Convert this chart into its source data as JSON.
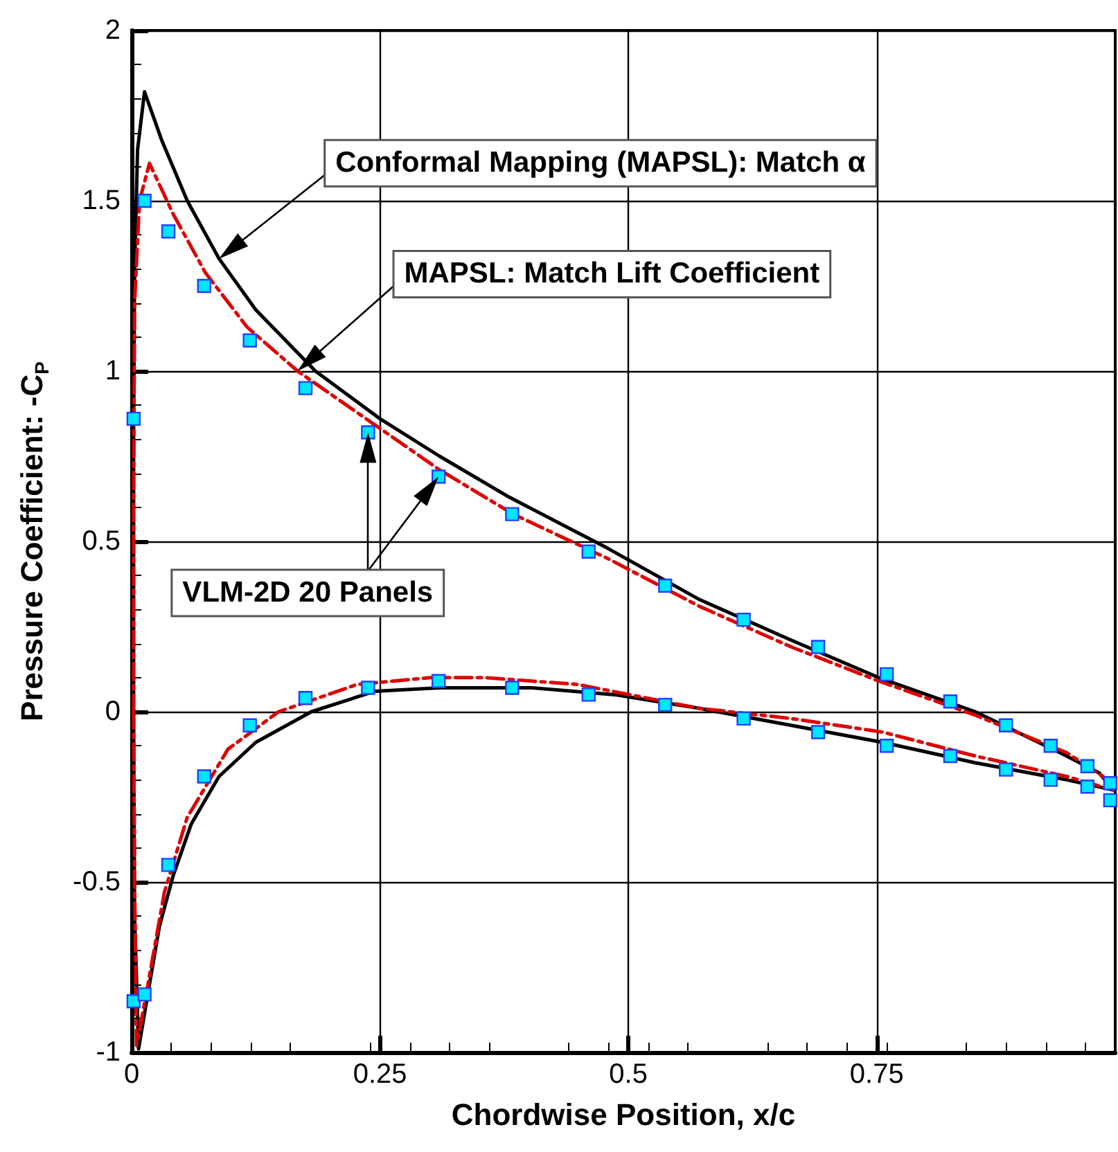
{
  "chart_data": {
    "type": "line",
    "xlabel": "Chordwise Position, x/c",
    "ylabel": "Pressure Coefficient: -C$_{P}$",
    "xlim": [
      0,
      0.99
    ],
    "xticks": [
      0,
      0.25,
      0.5,
      0.75
    ],
    "ylim": [
      -1,
      2
    ],
    "yticks": [
      -1,
      -0.5,
      0,
      0.5,
      1,
      1.5,
      2
    ],
    "grid": true,
    "series": [
      {
        "type": "line",
        "color": "#000000",
        "line_style": "solid",
        "marker": "none",
        "x": [
          0.002,
          0.002,
          0.003,
          0.006,
          0.013,
          0.03,
          0.056,
          0.088,
          0.125,
          0.185,
          0.25,
          0.31,
          0.38,
          0.479,
          0.571,
          0.664,
          0.752,
          0.849,
          0.941,
          0.974,
          0.988,
          null,
          0.002,
          0.003,
          0.007,
          0.018,
          0.028,
          0.042,
          0.06,
          0.088,
          0.125,
          0.181,
          0.245,
          0.31,
          0.403,
          0.486,
          0.571,
          0.664,
          0.756,
          0.849,
          0.941,
          0.988
        ],
        "values": [
          0,
          0.8,
          1.3,
          1.65,
          1.82,
          1.68,
          1.5,
          1.33,
          1.18,
          1.0,
          0.86,
          0.75,
          0.63,
          0.48,
          0.33,
          0.21,
          0.1,
          0.0,
          -0.13,
          -0.18,
          -0.23,
          null,
          0,
          -0.6,
          -0.99,
          -0.8,
          -0.63,
          -0.48,
          -0.33,
          -0.19,
          -0.09,
          0.0,
          0.06,
          0.07,
          0.07,
          0.05,
          0.01,
          -0.04,
          -0.09,
          -0.15,
          -0.2,
          -0.23
        ]
      },
      {
        "type": "line",
        "color": "#dd0000",
        "line_style": "dashed",
        "marker": "none",
        "x": [
          0.002,
          0.002,
          0.003,
          0.008,
          0.018,
          0.042,
          0.074,
          0.116,
          0.167,
          0.236,
          0.31,
          0.384,
          0.479,
          0.571,
          0.664,
          0.752,
          0.849,
          0.941,
          0.988,
          null,
          0.002,
          0.003,
          0.005,
          0.014,
          0.033,
          0.056,
          0.097,
          0.148,
          0.227,
          0.301,
          0.356,
          0.449,
          0.571,
          0.664,
          0.756,
          0.849,
          0.941,
          0.988
        ],
        "values": [
          0,
          0.6,
          1.2,
          1.5,
          1.61,
          1.46,
          1.29,
          1.13,
          1.0,
          0.86,
          0.71,
          0.58,
          0.45,
          0.31,
          0.19,
          0.09,
          -0.01,
          -0.12,
          -0.21,
          null,
          0,
          -0.5,
          -0.98,
          -0.84,
          -0.53,
          -0.31,
          -0.11,
          0.0,
          0.08,
          0.1,
          0.1,
          0.08,
          0.01,
          -0.02,
          -0.06,
          -0.13,
          -0.19,
          -0.23
        ]
      },
      {
        "type": "scatter",
        "color": "#00e5ff",
        "marker": "square",
        "x": [
          0.002,
          0.013,
          0.037,
          0.073,
          0.119,
          0.175,
          0.238,
          0.309,
          0.383,
          0.46,
          0.537,
          0.616,
          0.691,
          0.76,
          0.824,
          0.88,
          0.925,
          0.962,
          0.985,
          0.002,
          0.013,
          0.037,
          0.073,
          0.119,
          0.175,
          0.238,
          0.309,
          0.383,
          0.46,
          0.537,
          0.616,
          0.691,
          0.76,
          0.824,
          0.88,
          0.925,
          0.962,
          0.985
        ],
        "values": [
          0.86,
          1.5,
          1.41,
          1.25,
          1.09,
          0.95,
          0.82,
          0.69,
          0.58,
          0.47,
          0.37,
          0.27,
          0.19,
          0.11,
          0.03,
          -0.04,
          -0.1,
          -0.16,
          -0.21,
          -0.85,
          -0.83,
          -0.45,
          -0.19,
          -0.04,
          0.04,
          0.07,
          0.09,
          0.07,
          0.05,
          0.02,
          -0.02,
          -0.06,
          -0.1,
          -0.13,
          -0.17,
          -0.2,
          -0.22,
          -0.26
        ]
      }
    ],
    "annotations": [
      {
        "text": "Conformal Mapping (MAPSL): Match α",
        "x": 0.088,
        "y": 1.33
      },
      {
        "text": "MAPSL: Match Lift Coefficient",
        "x": 0.167,
        "y": 1.0
      },
      {
        "text": "VLM-2D 20 Panels",
        "x": 0.238,
        "y": 0.82
      }
    ]
  }
}
